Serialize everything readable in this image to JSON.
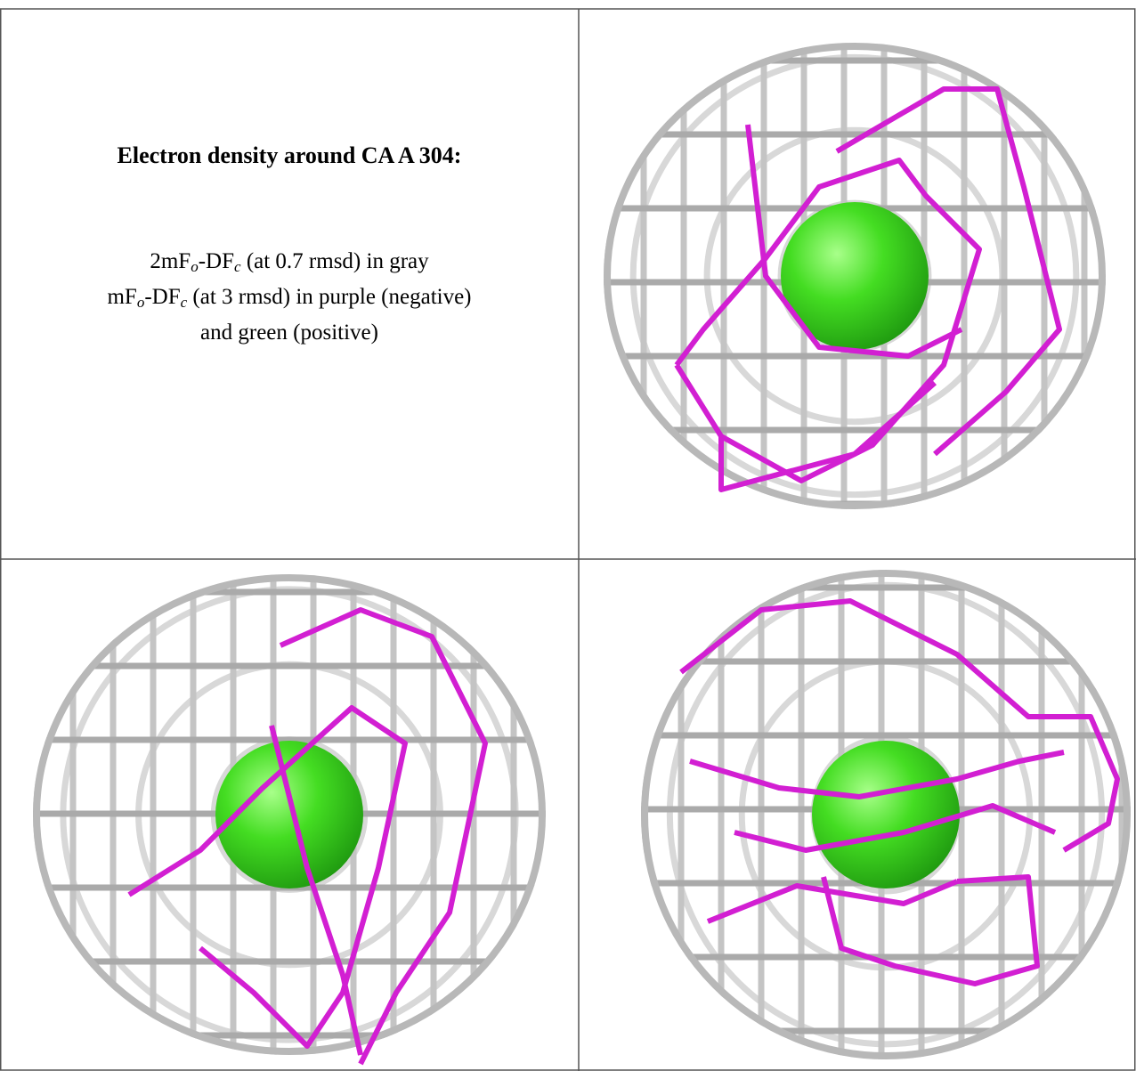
{
  "caption": {
    "title": "Electron density around CA A 304:",
    "lines": [
      [
        {
          "text": "2mF"
        },
        {
          "sub": "o"
        },
        {
          "text": "-DF"
        },
        {
          "sub": "c"
        },
        {
          "text": " (at 0.7 rmsd) in gray"
        }
      ],
      [
        {
          "text": "mF"
        },
        {
          "sub": "o"
        },
        {
          "text": "-DF"
        },
        {
          "sub": "c"
        },
        {
          "text": " (at 3 rmsd) in purple (negative)"
        }
      ],
      [
        {
          "text": "and green (positive)"
        }
      ]
    ]
  }
}
